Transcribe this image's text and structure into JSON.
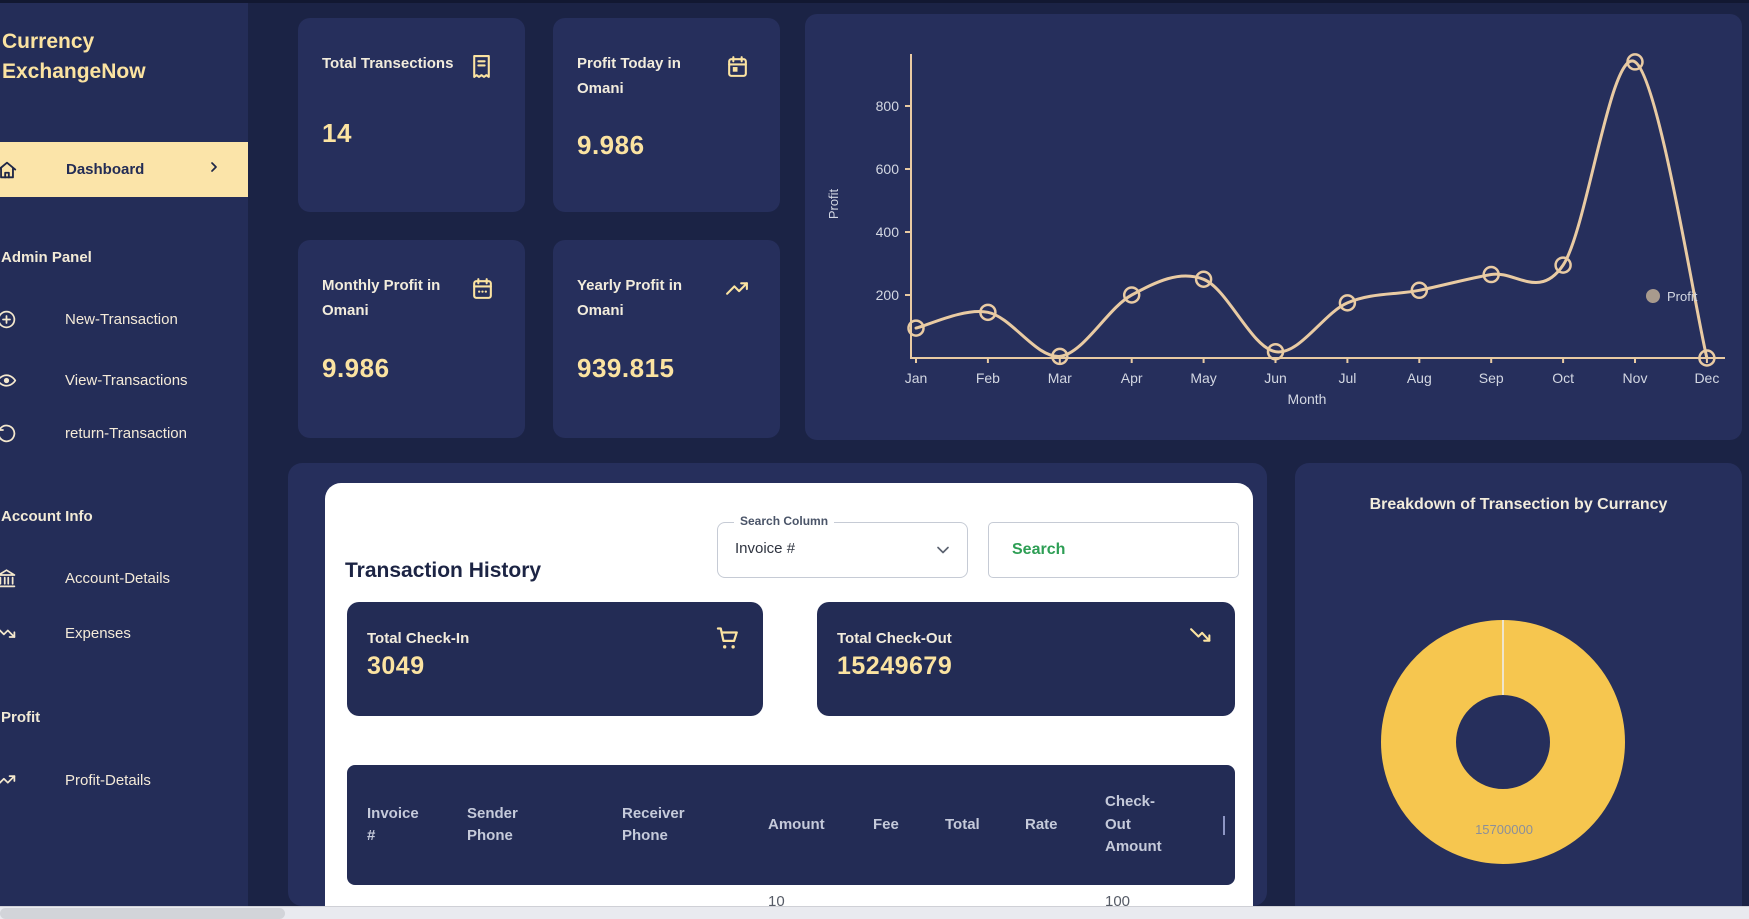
{
  "sidebar": {
    "brand": "Currency ExchangeNow",
    "dashboard": {
      "label": "Dashboard",
      "icon": "home-icon"
    },
    "groups": [
      {
        "title": "Admin Panel",
        "items": [
          {
            "label": "New-Transaction",
            "icon": "plus-circle-icon"
          },
          {
            "label": "View-Transactions",
            "icon": "eye-icon"
          },
          {
            "label": "return-Transaction",
            "icon": "rotate-ccw-icon"
          }
        ]
      },
      {
        "title": "Account Info",
        "items": [
          {
            "label": "Account-Details",
            "icon": "bank-icon"
          },
          {
            "label": "Expenses",
            "icon": "trending-down-icon"
          }
        ]
      },
      {
        "title": "Profit",
        "items": [
          {
            "label": "Profit-Details",
            "icon": "trending-up-icon"
          }
        ]
      }
    ]
  },
  "stat_cards": [
    {
      "title": "Total Transections",
      "value": "14",
      "icon": "receipt-icon"
    },
    {
      "title": "Profit Today in Omani",
      "value": "9.986",
      "icon": "calendar-icon"
    },
    {
      "title": "Monthly Profit in Omani",
      "value": "9.986",
      "icon": "calendar-month-icon"
    },
    {
      "title": "Yearly Profit in Omani",
      "value": "939.815",
      "icon": "trending-up-icon"
    }
  ],
  "transaction_history": {
    "heading": "Transaction History",
    "search_column_label": "Search Column",
    "search_column_value": "Invoice #",
    "search_button_label": "Search",
    "totals": [
      {
        "label": "Total Check-In",
        "value": "3049",
        "icon": "cart-icon"
      },
      {
        "label": "Total Check-Out",
        "value": "15249679",
        "icon": "trending-down-icon"
      }
    ],
    "table": {
      "columns": [
        "Invoice #",
        "Sender Phone",
        "Receiver Phone",
        "Amount",
        "Fee",
        "Total",
        "Rate",
        "Check-Out Amount"
      ],
      "rows": [
        {
          "amount": "10",
          "check_out_amount": "100"
        }
      ]
    }
  },
  "chart_data": [
    {
      "type": "line",
      "title": "",
      "x": [
        "Jan",
        "Feb",
        "Mar",
        "Apr",
        "May",
        "Jun",
        "Jul",
        "Aug",
        "Sep",
        "Oct",
        "Nov",
        "Dec"
      ],
      "series": [
        {
          "name": "Profit",
          "values": [
            95,
            145,
            5,
            200,
            250,
            20,
            175,
            215,
            265,
            295,
            940,
            0
          ]
        }
      ],
      "xlabel": "Month",
      "ylabel": "Profit",
      "ylim": [
        0,
        950
      ],
      "yticks": [
        200,
        400,
        600,
        800
      ],
      "grid": false,
      "legend_position": "right",
      "line_color": "#e9cba3",
      "legend_dot_color": "#a89a8d",
      "tick_text_color": "#d3d7e2"
    },
    {
      "type": "pie",
      "donut": true,
      "title": "Breakdown of Transection by Currancy",
      "values": [
        15700000
      ],
      "data_label": "15700000",
      "slice_color": "#f6c64f",
      "label_color": "#8b8f9a"
    }
  ],
  "colors": {
    "page_bg": "#1b2345",
    "sidebar_bg": "#242d58",
    "card_bg": "#262f5c",
    "inner_card_bg": "#232c55",
    "accent_cream": "#fbe3a1",
    "active_item_bg": "#fbe4a9",
    "donut_gold": "#f6c64f",
    "search_green": "#2d9e54",
    "chart_line": "#e9cba3"
  }
}
